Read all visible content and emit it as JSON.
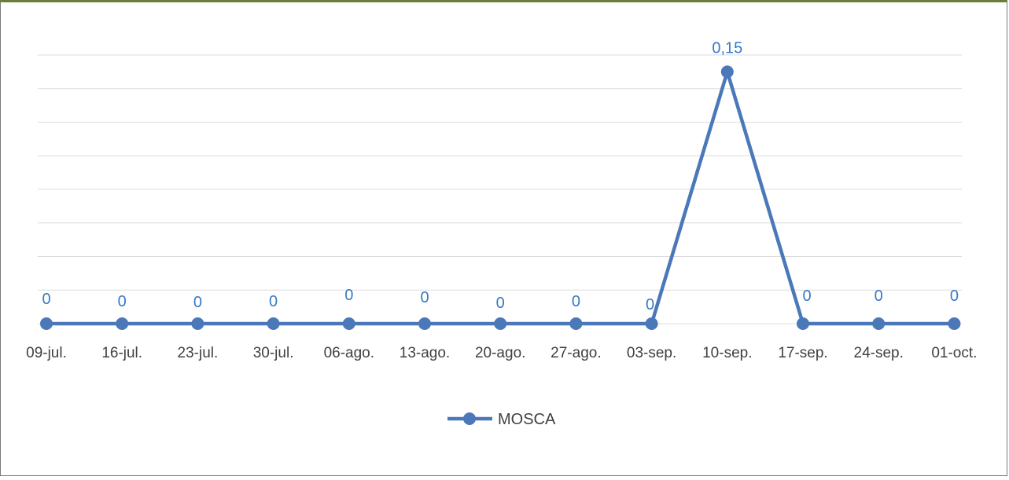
{
  "colors": {
    "series": "#4a78b8",
    "data_label": "#3579c5"
  },
  "chart_data": {
    "type": "line",
    "categories": [
      "09-jul.",
      "16-jul.",
      "23-jul.",
      "30-jul.",
      "06-ago.",
      "13-ago.",
      "20-ago.",
      "27-ago.",
      "03-sep.",
      "10-sep.",
      "17-sep.",
      "24-sep.",
      "01-oct."
    ],
    "series": [
      {
        "name": "MOSCA",
        "values": [
          0,
          0,
          0,
          0,
          0,
          0,
          0,
          0,
          0,
          0.15,
          0,
          0,
          0
        ],
        "data_labels": [
          "0",
          "0",
          "0",
          "0",
          "0",
          "0",
          "0",
          "0",
          "0",
          "0,15",
          "0",
          "0",
          "0"
        ]
      }
    ],
    "ylim": [
      0,
      0.16
    ],
    "y_grid_step": 0.02,
    "grid": true,
    "y_axis_labels_shown": false,
    "legend_position": "bottom"
  }
}
